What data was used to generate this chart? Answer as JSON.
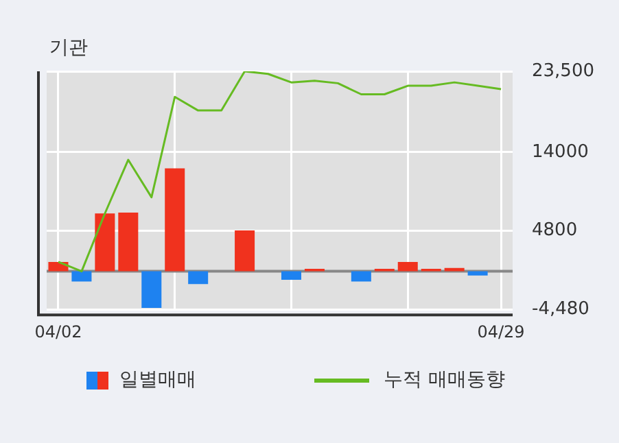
{
  "chart_data": {
    "type": "bar",
    "title": "기관",
    "categories": [
      "04/02",
      null,
      null,
      null,
      null,
      null,
      null,
      null,
      null,
      null,
      null,
      null,
      null,
      null,
      null,
      null,
      null,
      null,
      null,
      "04/29"
    ],
    "series": [
      {
        "name": "일별매매",
        "values": [
          1100,
          -1200,
          6800,
          6900,
          -4300,
          12100,
          -1500,
          0,
          4800,
          0,
          -1000,
          300,
          0,
          -1200,
          300,
          1100,
          300,
          400,
          -500,
          0
        ],
        "colors": [
          "#f0321e",
          "#1e82f0",
          "#f0321e",
          "#f0321e",
          "#1e82f0",
          "#f0321e",
          "#1e82f0",
          "#f0321e",
          "#f0321e",
          "#f0321e",
          "#1e82f0",
          "#f0321e",
          "#f0321e",
          "#1e82f0",
          "#f0321e",
          "#f0321e",
          "#f0321e",
          "#f0321e",
          "#1e82f0",
          "#f0321e"
        ]
      },
      {
        "name": "누적 매매동향",
        "type": "line",
        "color": "#66bb22",
        "values": [
          1100,
          0,
          6800,
          13100,
          8700,
          20500,
          18900,
          18900,
          23500,
          23200,
          22200,
          22400,
          22100,
          20800,
          20800,
          21800,
          21800,
          22200,
          21800,
          21400
        ]
      }
    ],
    "ylim": [
      -4480,
      23500
    ],
    "yticks": [
      {
        "value": -4480,
        "label": "-4,480"
      },
      4800,
      14000,
      {
        "value": 23500,
        "label": "23,500"
      }
    ],
    "ref_lines": [
      {
        "axis": "y",
        "value": 0,
        "color": "#888888"
      }
    ],
    "grid": true,
    "legend": "bottom",
    "marker": "none",
    "line_style": "solid"
  }
}
